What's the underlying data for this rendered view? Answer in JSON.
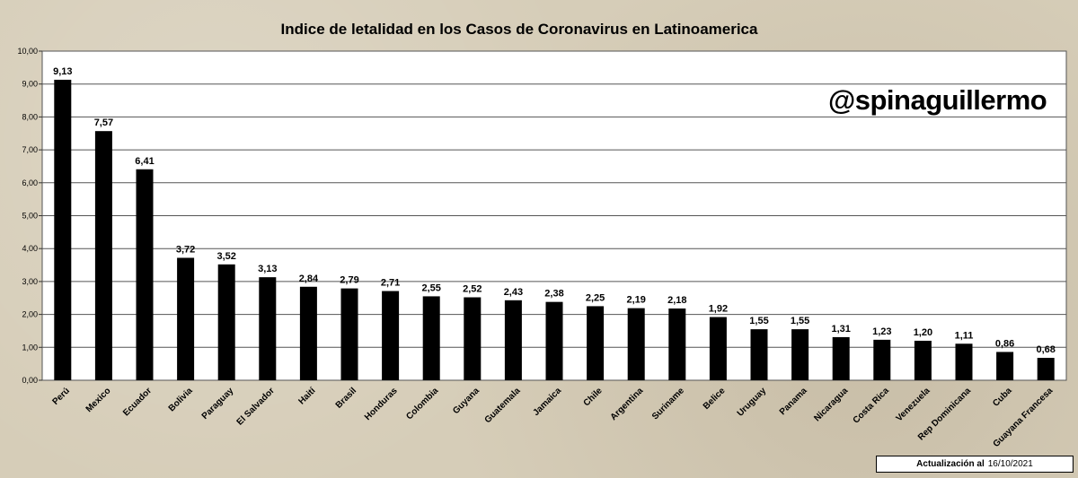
{
  "chart_data": {
    "type": "bar",
    "title": "Indice de letalidad en los Casos de Coronavirus en Latinoamerica",
    "categories": [
      "Perú",
      "Mexico",
      "Ecuador",
      "Bolivia",
      "Paraguay",
      "El Salvador",
      "Haití",
      "Brasil",
      "Honduras",
      "Colombia",
      "Guyana",
      "Guatemala",
      "Jamaica",
      "Chile",
      "Argentina",
      "Suriname",
      "Belice",
      "Uruguay",
      "Panama",
      "Nicaragua",
      "Costa Rica",
      "Venezuela",
      "Rep Dominicana",
      "Cuba",
      "Guayana Francesa"
    ],
    "values": [
      9.13,
      7.57,
      6.41,
      3.72,
      3.52,
      3.13,
      2.84,
      2.79,
      2.71,
      2.55,
      2.52,
      2.43,
      2.38,
      2.25,
      2.19,
      2.18,
      1.92,
      1.55,
      1.55,
      1.31,
      1.23,
      1.2,
      1.11,
      0.86,
      0.68
    ],
    "value_labels": [
      "9,13",
      "7,57",
      "6,41",
      "3,72",
      "3,52",
      "3,13",
      "2,84",
      "2,79",
      "2,71",
      "2,55",
      "2,52",
      "2,43",
      "2,38",
      "2,25",
      "2,19",
      "2,18",
      "1,92",
      "1,55",
      "1,55",
      "1,31",
      "1,23",
      "1,20",
      "1,11",
      "0,86",
      "0,68"
    ],
    "ylim": [
      0,
      10
    ],
    "yticks": [
      0,
      1,
      2,
      3,
      4,
      5,
      6,
      7,
      8,
      9,
      10
    ],
    "ytick_labels": [
      "0,00",
      "1,00",
      "2,00",
      "3,00",
      "4,00",
      "5,00",
      "6,00",
      "7,00",
      "8,00",
      "9,00",
      "10,00"
    ],
    "xlabel": "",
    "ylabel": "",
    "grid": true,
    "bar_color": "#000000",
    "plot_background": "#ffffff"
  },
  "watermark": "@spinaguillermo",
  "update": {
    "label": "Actualización  al",
    "date": "16/10/2021"
  }
}
